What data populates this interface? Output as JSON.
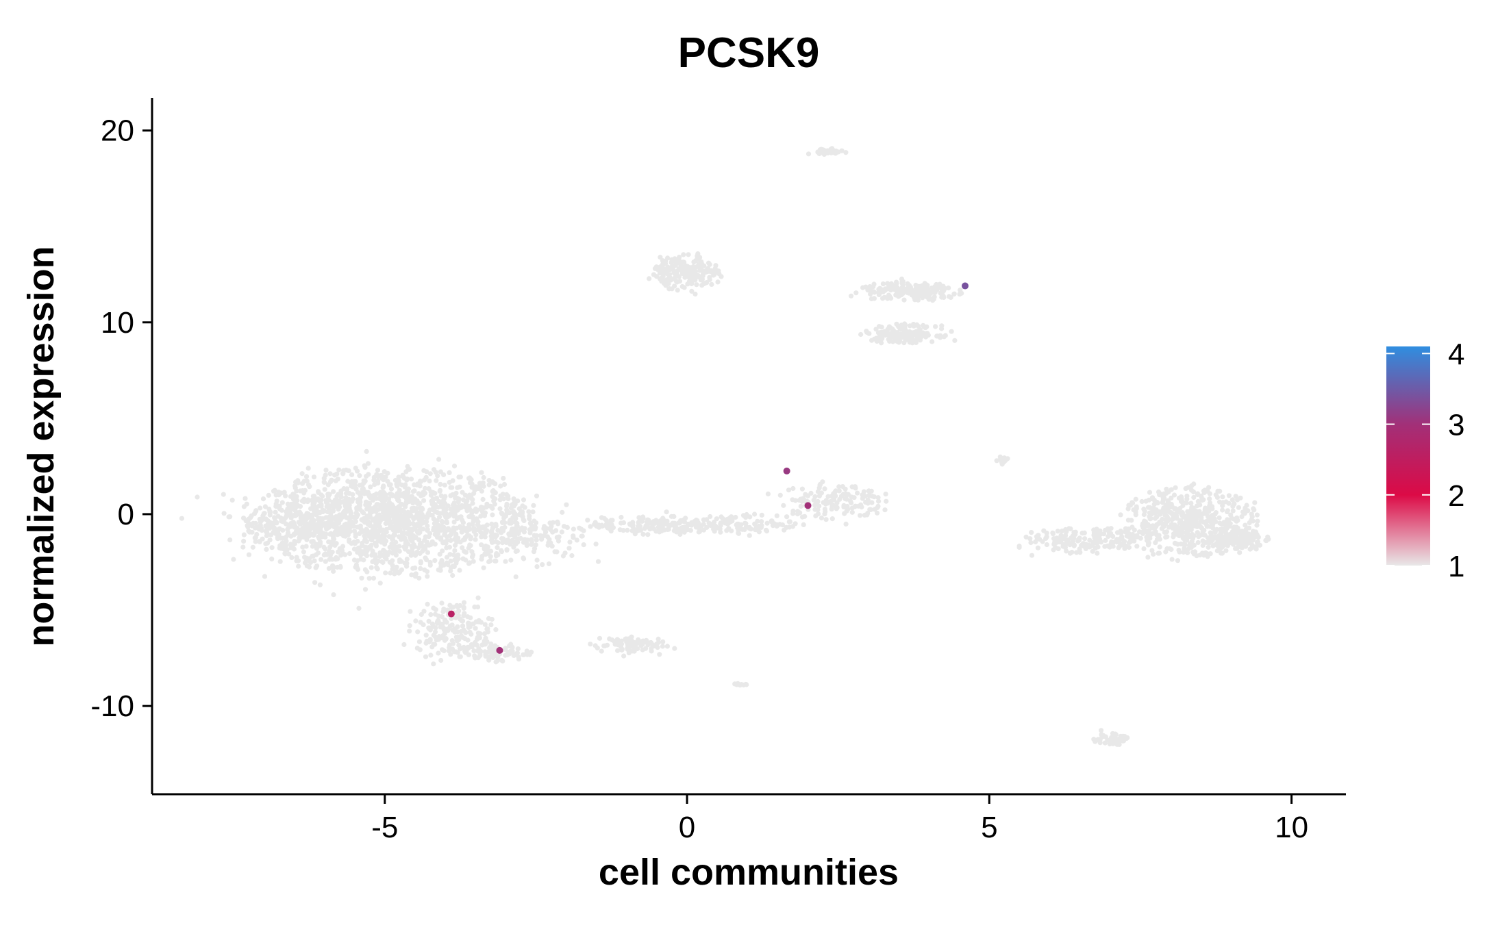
{
  "chart_data": {
    "type": "scatter",
    "title": "PCSK9",
    "xlabel": "cell communities",
    "ylabel": "normalized expression",
    "xlim": [
      -8.85,
      10.9
    ],
    "ylim": [
      -14.6,
      21.7
    ],
    "x_ticks": [
      -5,
      0,
      5,
      10
    ],
    "x_tick_labels": [
      "-5",
      "0",
      "5",
      "10"
    ],
    "y_ticks": [
      -10,
      0,
      10,
      20
    ],
    "y_tick_labels": [
      "-10",
      "0",
      "10",
      "20"
    ],
    "grid": false,
    "legend": "right",
    "colorbar": {
      "min": 1,
      "max": 4.1,
      "ticks": [
        1,
        2,
        3,
        4
      ],
      "tick_labels": [
        "1",
        "2",
        "3",
        "4"
      ],
      "colors": [
        "#e8e8e8",
        "#dc0a46",
        "#a23078",
        "#2f8ee0"
      ],
      "color_stops": [
        1,
        2,
        3,
        4.1
      ]
    },
    "background_color": "#e8e8e8",
    "clusters": [
      {
        "cx": -4.9,
        "cy": -0.4,
        "rx": 2.3,
        "ry": 2.8,
        "n": 1500
      },
      {
        "cx": -6.5,
        "cy": -0.5,
        "rx": 0.8,
        "ry": 1.4,
        "n": 220
      },
      {
        "cx": -2.6,
        "cy": -1.0,
        "rx": 1.0,
        "ry": 1.7,
        "n": 160
      },
      {
        "cx": -3.9,
        "cy": -6.0,
        "rx": 0.7,
        "ry": 1.5,
        "n": 180
      },
      {
        "cx": -3.2,
        "cy": -7.2,
        "rx": 0.6,
        "ry": 0.5,
        "n": 80
      },
      {
        "cx": -1.0,
        "cy": -6.8,
        "rx": 0.6,
        "ry": 0.5,
        "n": 80
      },
      {
        "cx": -0.5,
        "cy": -0.6,
        "rx": 1.1,
        "ry": 0.5,
        "n": 160
      },
      {
        "cx": 1.0,
        "cy": -0.5,
        "rx": 0.9,
        "ry": 0.5,
        "n": 100
      },
      {
        "cx": 2.4,
        "cy": 0.7,
        "rx": 0.9,
        "ry": 1.0,
        "n": 140
      },
      {
        "cx": 0.0,
        "cy": 12.6,
        "rx": 0.55,
        "ry": 0.9,
        "n": 200
      },
      {
        "cx": 3.7,
        "cy": 11.6,
        "rx": 0.9,
        "ry": 0.5,
        "n": 180
      },
      {
        "cx": 3.6,
        "cy": 9.4,
        "rx": 0.65,
        "ry": 0.5,
        "n": 150
      },
      {
        "cx": 2.3,
        "cy": 18.9,
        "rx": 0.3,
        "ry": 0.15,
        "n": 35
      },
      {
        "cx": 6.6,
        "cy": -1.4,
        "rx": 1.0,
        "ry": 0.7,
        "n": 170
      },
      {
        "cx": 8.3,
        "cy": -0.4,
        "rx": 1.1,
        "ry": 1.8,
        "n": 500
      },
      {
        "cx": 9.1,
        "cy": -1.3,
        "rx": 0.5,
        "ry": 0.6,
        "n": 120
      },
      {
        "cx": 7.0,
        "cy": -11.7,
        "rx": 0.3,
        "ry": 0.35,
        "n": 45
      },
      {
        "cx": 5.2,
        "cy": 2.8,
        "rx": 0.12,
        "ry": 0.25,
        "n": 12
      },
      {
        "cx": 0.85,
        "cy": -8.9,
        "rx": 0.15,
        "ry": 0.1,
        "n": 8
      }
    ],
    "highlighted_points": [
      {
        "x": 2.0,
        "y": 0.45,
        "value": 3.0
      },
      {
        "x": 1.65,
        "y": 2.25,
        "value": 3.1
      },
      {
        "x": -3.1,
        "y": -7.1,
        "value": 3.0
      },
      {
        "x": -3.9,
        "y": -5.2,
        "value": 2.6
      },
      {
        "x": 4.6,
        "y": 11.9,
        "value": 3.4
      }
    ]
  }
}
